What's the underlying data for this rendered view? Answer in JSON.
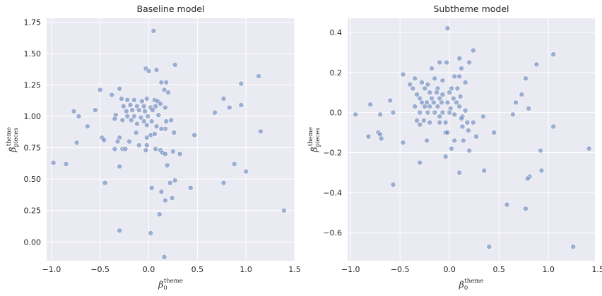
{
  "chart_data": [
    {
      "type": "scatter",
      "title": "Baseline model",
      "xlabel_base": "β",
      "xlabel_sub": "0",
      "xlabel_sup": "theme",
      "ylabel_base": "β",
      "ylabel_sub": "pieces",
      "ylabel_sup": "theme",
      "xlim": [
        -1.05,
        1.5
      ],
      "ylim": [
        -0.15,
        1.78
      ],
      "xticks": [
        -1.0,
        -0.5,
        0.0,
        0.5,
        1.0,
        1.5
      ],
      "xtick_labels": [
        "−1.0",
        "−0.5",
        "0.0",
        "0.5",
        "1.0",
        "1.5"
      ],
      "yticks": [
        0.0,
        0.25,
        0.5,
        0.75,
        1.0,
        1.25,
        1.5,
        1.75
      ],
      "ytick_labels": [
        "0.00",
        "0.25",
        "0.50",
        "0.75",
        "1.00",
        "1.25",
        "1.50",
        "1.75"
      ],
      "points": [
        [
          0.05,
          1.68
        ],
        [
          0.27,
          1.41
        ],
        [
          1.13,
          1.32
        ],
        [
          -0.03,
          1.38
        ],
        [
          0.0,
          1.36
        ],
        [
          0.08,
          1.37
        ],
        [
          -0.5,
          1.21
        ],
        [
          -0.3,
          1.22
        ],
        [
          -0.38,
          1.17
        ],
        [
          0.13,
          1.27
        ],
        [
          0.18,
          1.27
        ],
        [
          0.16,
          1.21
        ],
        [
          0.2,
          1.19
        ],
        [
          0.95,
          1.26
        ],
        [
          -0.28,
          1.14
        ],
        [
          -0.22,
          1.13
        ],
        [
          -0.15,
          1.13
        ],
        [
          -0.07,
          1.12
        ],
        [
          -0.02,
          1.14
        ],
        [
          0.06,
          1.13
        ],
        [
          0.09,
          1.12
        ],
        [
          0.12,
          1.1
        ],
        [
          0.77,
          1.14
        ],
        [
          -0.26,
          1.08
        ],
        [
          -0.19,
          1.09
        ],
        [
          -0.12,
          1.08
        ],
        [
          -0.05,
          1.08
        ],
        [
          0.02,
          1.07
        ],
        [
          0.07,
          1.08
        ],
        [
          0.17,
          1.07
        ],
        [
          0.95,
          1.09
        ],
        [
          0.83,
          1.07
        ],
        [
          -0.77,
          1.04
        ],
        [
          -0.55,
          1.05
        ],
        [
          -0.23,
          1.04
        ],
        [
          -0.17,
          1.05
        ],
        [
          -0.1,
          1.05
        ],
        [
          -0.04,
          1.04
        ],
        [
          0.04,
          1.05
        ],
        [
          0.68,
          1.03
        ],
        [
          -0.34,
          1.01
        ],
        [
          -0.22,
          1.0
        ],
        [
          -0.15,
          1.0
        ],
        [
          -0.08,
          0.99
        ],
        [
          -0.01,
          1.0
        ],
        [
          0.1,
          1.01
        ],
        [
          -0.72,
          1.0
        ],
        [
          -0.35,
          0.98
        ],
        [
          -0.27,
          0.97
        ],
        [
          -0.18,
          0.97
        ],
        [
          -0.05,
          0.96
        ],
        [
          0.03,
          0.96
        ],
        [
          0.18,
          0.96
        ],
        [
          0.23,
          0.97
        ],
        [
          -0.63,
          0.92
        ],
        [
          -0.12,
          0.94
        ],
        [
          -0.02,
          0.93
        ],
        [
          0.08,
          0.92
        ],
        [
          0.17,
          0.9
        ],
        [
          0.13,
          0.9
        ],
        [
          1.15,
          0.88
        ],
        [
          -0.13,
          0.87
        ],
        [
          0.26,
          0.87
        ],
        [
          0.02,
          0.85
        ],
        [
          0.06,
          0.86
        ],
        [
          -0.02,
          0.83
        ],
        [
          -0.48,
          0.83
        ],
        [
          -0.3,
          0.83
        ],
        [
          -0.46,
          0.81
        ],
        [
          0.47,
          0.85
        ],
        [
          -0.74,
          0.79
        ],
        [
          -0.32,
          0.8
        ],
        [
          -0.2,
          0.8
        ],
        [
          -0.1,
          0.77
        ],
        [
          -0.27,
          0.74
        ],
        [
          -0.24,
          0.74
        ],
        [
          -0.35,
          0.74
        ],
        [
          -0.02,
          0.77
        ],
        [
          0.07,
          0.74
        ],
        [
          0.12,
          0.73
        ],
        [
          -0.03,
          0.73
        ],
        [
          0.25,
          0.72
        ],
        [
          0.14,
          0.71
        ],
        [
          0.17,
          0.7
        ],
        [
          0.32,
          0.7
        ],
        [
          -0.98,
          0.63
        ],
        [
          -0.85,
          0.62
        ],
        [
          -0.3,
          0.6
        ],
        [
          0.19,
          0.61
        ],
        [
          0.88,
          0.62
        ],
        [
          1.0,
          0.56
        ],
        [
          -0.45,
          0.47
        ],
        [
          0.22,
          0.47
        ],
        [
          0.27,
          0.49
        ],
        [
          0.77,
          0.47
        ],
        [
          0.43,
          0.43
        ],
        [
          0.03,
          0.43
        ],
        [
          0.13,
          0.4
        ],
        [
          0.24,
          0.35
        ],
        [
          0.17,
          0.33
        ],
        [
          0.11,
          0.22
        ],
        [
          -0.3,
          0.09
        ],
        [
          0.02,
          0.07
        ],
        [
          0.16,
          -0.12
        ],
        [
          1.39,
          0.25
        ]
      ]
    },
    {
      "type": "scatter",
      "title": "Subtheme model",
      "xlabel_base": "β",
      "xlabel_sub": "0",
      "xlabel_sup": "theme",
      "ylabel_base": "β",
      "ylabel_sub": "pieces",
      "ylabel_sup": "theme",
      "xlim": [
        -1.03,
        1.47
      ],
      "ylim": [
        -0.74,
        0.47
      ],
      "xticks": [
        -1.0,
        -0.5,
        0.0,
        0.5,
        1.0,
        1.5
      ],
      "xtick_labels": [
        "−1.0",
        "−0.5",
        "0.0",
        "0.5",
        "1.0",
        "1.5"
      ],
      "yticks": [
        -0.6,
        -0.4,
        -0.2,
        0.0,
        0.2,
        0.4
      ],
      "ytick_labels": [
        "−0.6",
        "−0.4",
        "−0.2",
        "0.0",
        "0.2",
        "0.4"
      ],
      "points": [
        [
          -0.02,
          0.42
        ],
        [
          0.24,
          0.31
        ],
        [
          1.05,
          0.29
        ],
        [
          0.1,
          0.27
        ],
        [
          -0.1,
          0.25
        ],
        [
          -0.03,
          0.25
        ],
        [
          0.2,
          0.25
        ],
        [
          0.88,
          0.24
        ],
        [
          -0.18,
          0.22
        ],
        [
          0.12,
          0.22
        ],
        [
          -0.47,
          0.19
        ],
        [
          -0.35,
          0.17
        ],
        [
          -0.15,
          0.17
        ],
        [
          -0.07,
          0.16
        ],
        [
          0.1,
          0.18
        ],
        [
          0.05,
          0.18
        ],
        [
          0.77,
          0.17
        ],
        [
          -0.4,
          0.14
        ],
        [
          -0.28,
          0.15
        ],
        [
          -0.22,
          0.14
        ],
        [
          0.16,
          0.15
        ],
        [
          -0.37,
          0.12
        ],
        [
          -0.25,
          0.12
        ],
        [
          -0.12,
          0.12
        ],
        [
          0.02,
          0.12
        ],
        [
          0.08,
          0.12
        ],
        [
          -0.33,
          0.09
        ],
        [
          -0.2,
          0.1
        ],
        [
          -0.13,
          0.1
        ],
        [
          -0.07,
          0.09
        ],
        [
          0.0,
          0.1
        ],
        [
          0.73,
          0.09
        ],
        [
          -0.3,
          0.07
        ],
        [
          -0.18,
          0.07
        ],
        [
          -0.1,
          0.07
        ],
        [
          0.04,
          0.07
        ],
        [
          0.11,
          0.08
        ],
        [
          -0.6,
          0.06
        ],
        [
          -0.28,
          0.05
        ],
        [
          -0.23,
          0.05
        ],
        [
          -0.16,
          0.05
        ],
        [
          -0.08,
          0.05
        ],
        [
          -0.02,
          0.05
        ],
        [
          0.07,
          0.05
        ],
        [
          0.67,
          0.05
        ],
        [
          -0.8,
          0.04
        ],
        [
          -0.35,
          0.03
        ],
        [
          -0.25,
          0.03
        ],
        [
          -0.2,
          0.03
        ],
        [
          -0.12,
          0.03
        ],
        [
          0.01,
          0.02
        ],
        [
          0.1,
          0.03
        ],
        [
          0.8,
          0.02
        ],
        [
          -0.3,
          0.0
        ],
        [
          -0.22,
          0.0
        ],
        [
          -0.15,
          0.0
        ],
        [
          -0.07,
          0.0
        ],
        [
          0.0,
          0.0
        ],
        [
          0.16,
          0.01
        ],
        [
          -0.95,
          -0.01
        ],
        [
          -0.7,
          -0.01
        ],
        [
          -0.57,
          0.0
        ],
        [
          0.05,
          -0.01
        ],
        [
          0.64,
          -0.01
        ],
        [
          -0.1,
          -0.02
        ],
        [
          0.13,
          -0.02
        ],
        [
          0.34,
          -0.02
        ],
        [
          -0.33,
          -0.04
        ],
        [
          -0.26,
          -0.04
        ],
        [
          -0.2,
          -0.05
        ],
        [
          -0.1,
          -0.05
        ],
        [
          -0.04,
          -0.05
        ],
        [
          0.18,
          -0.05
        ],
        [
          0.24,
          -0.05
        ],
        [
          -0.3,
          -0.06
        ],
        [
          0.12,
          -0.03
        ],
        [
          1.05,
          -0.07
        ],
        [
          -0.72,
          -0.1
        ],
        [
          -0.7,
          -0.11
        ],
        [
          -0.04,
          -0.1
        ],
        [
          -0.02,
          -0.1
        ],
        [
          0.13,
          -0.07
        ],
        [
          0.19,
          -0.09
        ],
        [
          0.27,
          -0.12
        ],
        [
          0.45,
          -0.1
        ],
        [
          -0.82,
          -0.12
        ],
        [
          -0.69,
          -0.13
        ],
        [
          -0.23,
          -0.14
        ],
        [
          0.05,
          -0.14
        ],
        [
          0.14,
          -0.14
        ],
        [
          -0.47,
          -0.15
        ],
        [
          0.02,
          -0.18
        ],
        [
          0.2,
          -0.19
        ],
        [
          0.92,
          -0.19
        ],
        [
          1.41,
          -0.18
        ],
        [
          -0.04,
          -0.22
        ],
        [
          -0.3,
          -0.25
        ],
        [
          0.35,
          -0.29
        ],
        [
          0.1,
          -0.3
        ],
        [
          0.93,
          -0.29
        ],
        [
          0.81,
          -0.32
        ],
        [
          0.79,
          -0.33
        ],
        [
          -0.57,
          -0.36
        ],
        [
          0.58,
          -0.46
        ],
        [
          0.77,
          -0.48
        ],
        [
          0.4,
          -0.67
        ],
        [
          1.25,
          -0.67
        ]
      ]
    }
  ]
}
